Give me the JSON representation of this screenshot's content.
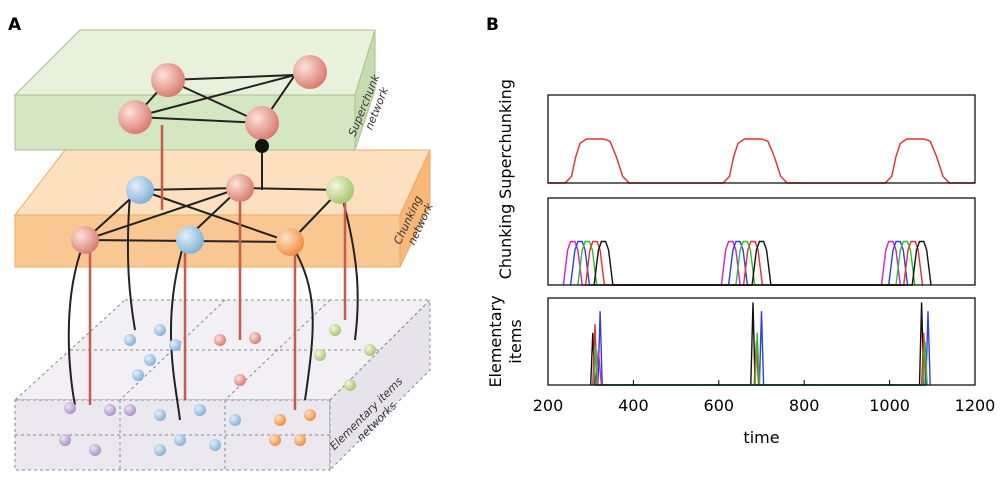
{
  "panel_a": {
    "label": "A",
    "layers": [
      [
        "Superchunk",
        "network"
      ],
      [
        "Chunking",
        "network"
      ],
      [
        "Elementary items",
        "networks"
      ]
    ]
  },
  "panel_b": {
    "label": "B"
  },
  "chart_data": [
    {
      "type": "line",
      "ylabel": [
        "Superchunking"
      ],
      "xlim": [
        200,
        1200
      ],
      "ylim": [
        0,
        2
      ],
      "series": [
        {
          "color": "#e0302a",
          "x": [
            200,
            240,
            255,
            265,
            275,
            290,
            330,
            345,
            360,
            375,
            390,
            610,
            625,
            635,
            645,
            660,
            700,
            715,
            730,
            745,
            760,
            990,
            1005,
            1015,
            1025,
            1040,
            1080,
            1095,
            1110,
            1125,
            1140,
            1200
          ],
          "values": [
            0,
            0,
            0.15,
            0.6,
            0.9,
            1,
            1,
            0.95,
            0.6,
            0.15,
            0,
            0,
            0.15,
            0.6,
            0.9,
            1,
            1,
            0.95,
            0.6,
            0.15,
            0,
            0,
            0.15,
            0.6,
            0.9,
            1,
            1,
            0.95,
            0.6,
            0.15,
            0,
            0
          ]
        }
      ]
    },
    {
      "type": "line",
      "ylabel": [
        "Chunking"
      ],
      "xlim": [
        200,
        1200
      ],
      "ylim": [
        0,
        2
      ],
      "series": [
        {
          "color": "#d020d0",
          "x": [
            236,
            246,
            253,
            263,
            270,
            280,
            606,
            616,
            623,
            633,
            640,
            650,
            981,
            991,
            998,
            1008,
            1015,
            1025
          ],
          "values": [
            0,
            0.8,
            1,
            1,
            0.8,
            0,
            0,
            0.8,
            1,
            1,
            0.8,
            0,
            0,
            0.8,
            1,
            1,
            0.8,
            0
          ]
        },
        {
          "color": "#3040e0",
          "x": [
            253,
            263,
            270,
            280,
            287,
            297,
            623,
            633,
            640,
            650,
            657,
            667,
            998,
            1008,
            1015,
            1025,
            1032,
            1042
          ],
          "values": [
            0,
            0.8,
            1,
            1,
            0.8,
            0,
            0,
            0.8,
            1,
            1,
            0.8,
            0,
            0,
            0.8,
            1,
            1,
            0.8,
            0
          ]
        },
        {
          "color": "#30c030",
          "x": [
            270,
            280,
            287,
            297,
            304,
            314,
            640,
            650,
            657,
            667,
            674,
            684,
            1015,
            1025,
            1032,
            1042,
            1049,
            1059
          ],
          "values": [
            0,
            0.8,
            1,
            1,
            0.8,
            0,
            0,
            0.8,
            1,
            1,
            0.8,
            0,
            0,
            0.8,
            1,
            1,
            0.8,
            0
          ]
        },
        {
          "color": "#e03030",
          "x": [
            288,
            298,
            305,
            315,
            322,
            332,
            658,
            668,
            675,
            685,
            692,
            702,
            1033,
            1043,
            1050,
            1060,
            1067,
            1077
          ],
          "values": [
            0,
            0.8,
            1,
            1,
            0.8,
            0,
            0,
            0.8,
            1,
            1,
            0.8,
            0,
            0,
            0.8,
            1,
            1,
            0.8,
            0
          ]
        },
        {
          "color": "#111111",
          "x": [
            308,
            318,
            325,
            335,
            342,
            352,
            678,
            688,
            695,
            705,
            712,
            722,
            1053,
            1063,
            1070,
            1080,
            1087,
            1097
          ],
          "values": [
            0,
            0.8,
            1,
            1,
            0.8,
            0,
            0,
            0.8,
            1,
            1,
            0.8,
            0,
            0,
            0.8,
            1,
            1,
            0.8,
            0
          ]
        }
      ]
    },
    {
      "type": "line",
      "ylabel": [
        "Elementary",
        "items"
      ],
      "xlabel": "time",
      "xlim": [
        200,
        1200
      ],
      "ylim": [
        0,
        1
      ],
      "xticks": [
        200,
        400,
        600,
        800,
        1000,
        1200
      ],
      "series": [
        {
          "color": "#111111",
          "x": [
            300,
            305,
            310,
            675,
            680,
            685,
            1070,
            1075,
            1080
          ],
          "values": [
            0,
            0.6,
            0,
            0,
            0.95,
            0,
            0,
            0.95,
            0
          ]
        },
        {
          "color": "#e03030",
          "x": [
            305,
            310,
            315,
            683,
            688,
            693,
            1075,
            1080,
            1085
          ],
          "values": [
            0,
            0.7,
            0,
            0,
            0.5,
            0,
            0,
            0.6,
            0
          ]
        },
        {
          "color": "#3040e0",
          "x": [
            317,
            322,
            327,
            695,
            700,
            705,
            1085,
            1090,
            1095
          ],
          "values": [
            0,
            0.85,
            0,
            0,
            0.85,
            0,
            0,
            0.85,
            0
          ]
        },
        {
          "color": "#d020d0",
          "x": [
            311,
            318,
            325
          ],
          "values": [
            0,
            0.4,
            0
          ]
        },
        {
          "color": "#30c030",
          "x": [
            307,
            312,
            317,
            685,
            690,
            695,
            1078,
            1083,
            1088
          ],
          "values": [
            0,
            0.45,
            0,
            0,
            0.6,
            0,
            0,
            0.5,
            0
          ]
        }
      ]
    }
  ]
}
